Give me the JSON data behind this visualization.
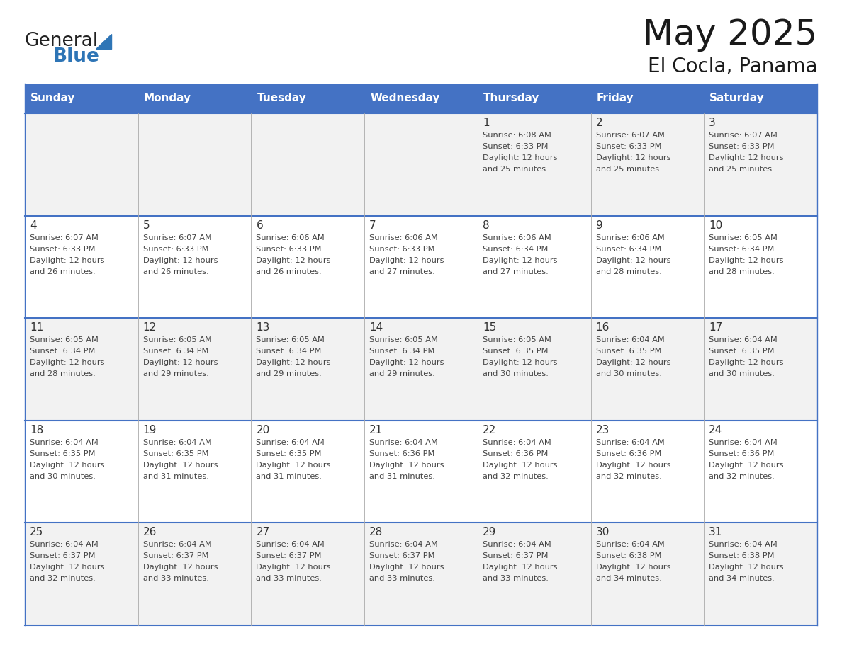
{
  "title": "May 2025",
  "subtitle": "El Cocla, Panama",
  "days_of_week": [
    "Sunday",
    "Monday",
    "Tuesday",
    "Wednesday",
    "Thursday",
    "Friday",
    "Saturday"
  ],
  "header_bg": "#4472C4",
  "header_text_color": "#FFFFFF",
  "cell_bg_even": "#F2F2F2",
  "cell_bg_odd": "#FFFFFF",
  "day_number_color": "#333333",
  "cell_text_color": "#444444",
  "grid_line_color": "#4472C4",
  "background_color": "#FFFFFF",
  "title_color": "#1a1a1a",
  "subtitle_color": "#1a1a1a",
  "logo_general_color": "#222222",
  "logo_blue_color": "#2E75B6",
  "weeks": [
    {
      "days": [
        {
          "day": null,
          "sunrise": null,
          "sunset": null,
          "daylight_line1": null,
          "daylight_line2": null
        },
        {
          "day": null,
          "sunrise": null,
          "sunset": null,
          "daylight_line1": null,
          "daylight_line2": null
        },
        {
          "day": null,
          "sunrise": null,
          "sunset": null,
          "daylight_line1": null,
          "daylight_line2": null
        },
        {
          "day": null,
          "sunrise": null,
          "sunset": null,
          "daylight_line1": null,
          "daylight_line2": null
        },
        {
          "day": 1,
          "sunrise": "6:08 AM",
          "sunset": "6:33 PM",
          "daylight_line1": "Daylight: 12 hours",
          "daylight_line2": "and 25 minutes."
        },
        {
          "day": 2,
          "sunrise": "6:07 AM",
          "sunset": "6:33 PM",
          "daylight_line1": "Daylight: 12 hours",
          "daylight_line2": "and 25 minutes."
        },
        {
          "day": 3,
          "sunrise": "6:07 AM",
          "sunset": "6:33 PM",
          "daylight_line1": "Daylight: 12 hours",
          "daylight_line2": "and 25 minutes."
        }
      ]
    },
    {
      "days": [
        {
          "day": 4,
          "sunrise": "6:07 AM",
          "sunset": "6:33 PM",
          "daylight_line1": "Daylight: 12 hours",
          "daylight_line2": "and 26 minutes."
        },
        {
          "day": 5,
          "sunrise": "6:07 AM",
          "sunset": "6:33 PM",
          "daylight_line1": "Daylight: 12 hours",
          "daylight_line2": "and 26 minutes."
        },
        {
          "day": 6,
          "sunrise": "6:06 AM",
          "sunset": "6:33 PM",
          "daylight_line1": "Daylight: 12 hours",
          "daylight_line2": "and 26 minutes."
        },
        {
          "day": 7,
          "sunrise": "6:06 AM",
          "sunset": "6:33 PM",
          "daylight_line1": "Daylight: 12 hours",
          "daylight_line2": "and 27 minutes."
        },
        {
          "day": 8,
          "sunrise": "6:06 AM",
          "sunset": "6:34 PM",
          "daylight_line1": "Daylight: 12 hours",
          "daylight_line2": "and 27 minutes."
        },
        {
          "day": 9,
          "sunrise": "6:06 AM",
          "sunset": "6:34 PM",
          "daylight_line1": "Daylight: 12 hours",
          "daylight_line2": "and 28 minutes."
        },
        {
          "day": 10,
          "sunrise": "6:05 AM",
          "sunset": "6:34 PM",
          "daylight_line1": "Daylight: 12 hours",
          "daylight_line2": "and 28 minutes."
        }
      ]
    },
    {
      "days": [
        {
          "day": 11,
          "sunrise": "6:05 AM",
          "sunset": "6:34 PM",
          "daylight_line1": "Daylight: 12 hours",
          "daylight_line2": "and 28 minutes."
        },
        {
          "day": 12,
          "sunrise": "6:05 AM",
          "sunset": "6:34 PM",
          "daylight_line1": "Daylight: 12 hours",
          "daylight_line2": "and 29 minutes."
        },
        {
          "day": 13,
          "sunrise": "6:05 AM",
          "sunset": "6:34 PM",
          "daylight_line1": "Daylight: 12 hours",
          "daylight_line2": "and 29 minutes."
        },
        {
          "day": 14,
          "sunrise": "6:05 AM",
          "sunset": "6:34 PM",
          "daylight_line1": "Daylight: 12 hours",
          "daylight_line2": "and 29 minutes."
        },
        {
          "day": 15,
          "sunrise": "6:05 AM",
          "sunset": "6:35 PM",
          "daylight_line1": "Daylight: 12 hours",
          "daylight_line2": "and 30 minutes."
        },
        {
          "day": 16,
          "sunrise": "6:04 AM",
          "sunset": "6:35 PM",
          "daylight_line1": "Daylight: 12 hours",
          "daylight_line2": "and 30 minutes."
        },
        {
          "day": 17,
          "sunrise": "6:04 AM",
          "sunset": "6:35 PM",
          "daylight_line1": "Daylight: 12 hours",
          "daylight_line2": "and 30 minutes."
        }
      ]
    },
    {
      "days": [
        {
          "day": 18,
          "sunrise": "6:04 AM",
          "sunset": "6:35 PM",
          "daylight_line1": "Daylight: 12 hours",
          "daylight_line2": "and 30 minutes."
        },
        {
          "day": 19,
          "sunrise": "6:04 AM",
          "sunset": "6:35 PM",
          "daylight_line1": "Daylight: 12 hours",
          "daylight_line2": "and 31 minutes."
        },
        {
          "day": 20,
          "sunrise": "6:04 AM",
          "sunset": "6:35 PM",
          "daylight_line1": "Daylight: 12 hours",
          "daylight_line2": "and 31 minutes."
        },
        {
          "day": 21,
          "sunrise": "6:04 AM",
          "sunset": "6:36 PM",
          "daylight_line1": "Daylight: 12 hours",
          "daylight_line2": "and 31 minutes."
        },
        {
          "day": 22,
          "sunrise": "6:04 AM",
          "sunset": "6:36 PM",
          "daylight_line1": "Daylight: 12 hours",
          "daylight_line2": "and 32 minutes."
        },
        {
          "day": 23,
          "sunrise": "6:04 AM",
          "sunset": "6:36 PM",
          "daylight_line1": "Daylight: 12 hours",
          "daylight_line2": "and 32 minutes."
        },
        {
          "day": 24,
          "sunrise": "6:04 AM",
          "sunset": "6:36 PM",
          "daylight_line1": "Daylight: 12 hours",
          "daylight_line2": "and 32 minutes."
        }
      ]
    },
    {
      "days": [
        {
          "day": 25,
          "sunrise": "6:04 AM",
          "sunset": "6:37 PM",
          "daylight_line1": "Daylight: 12 hours",
          "daylight_line2": "and 32 minutes."
        },
        {
          "day": 26,
          "sunrise": "6:04 AM",
          "sunset": "6:37 PM",
          "daylight_line1": "Daylight: 12 hours",
          "daylight_line2": "and 33 minutes."
        },
        {
          "day": 27,
          "sunrise": "6:04 AM",
          "sunset": "6:37 PM",
          "daylight_line1": "Daylight: 12 hours",
          "daylight_line2": "and 33 minutes."
        },
        {
          "day": 28,
          "sunrise": "6:04 AM",
          "sunset": "6:37 PM",
          "daylight_line1": "Daylight: 12 hours",
          "daylight_line2": "and 33 minutes."
        },
        {
          "day": 29,
          "sunrise": "6:04 AM",
          "sunset": "6:37 PM",
          "daylight_line1": "Daylight: 12 hours",
          "daylight_line2": "and 33 minutes."
        },
        {
          "day": 30,
          "sunrise": "6:04 AM",
          "sunset": "6:38 PM",
          "daylight_line1": "Daylight: 12 hours",
          "daylight_line2": "and 34 minutes."
        },
        {
          "day": 31,
          "sunrise": "6:04 AM",
          "sunset": "6:38 PM",
          "daylight_line1": "Daylight: 12 hours",
          "daylight_line2": "and 34 minutes."
        }
      ]
    }
  ]
}
